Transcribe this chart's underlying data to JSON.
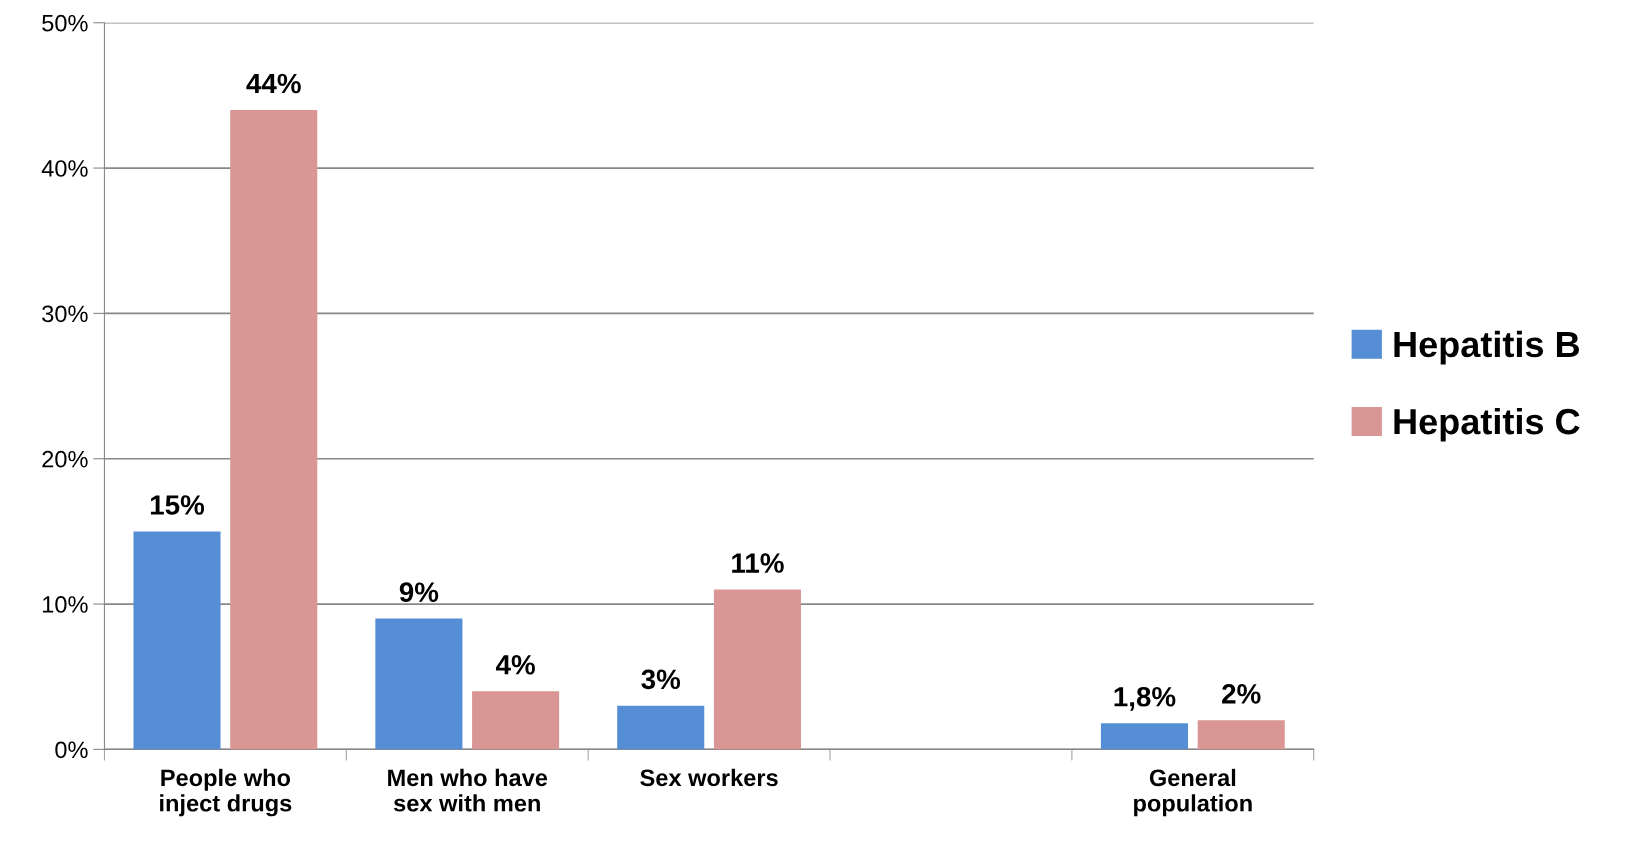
{
  "chart_data": {
    "type": "bar",
    "categories": [
      "People who\ninject drugs",
      "Men who have\nsex with men",
      "Sex workers",
      null,
      "General\npopulation"
    ],
    "series": [
      {
        "name": "Hepatitis B",
        "color": "#558ed5",
        "values": [
          15,
          9,
          3,
          null,
          1.8
        ],
        "value_labels": [
          "15%",
          "9%",
          "3%",
          null,
          "1,8%"
        ]
      },
      {
        "name": "Hepatitis C",
        "color": "#d99694",
        "values": [
          44,
          4,
          11,
          null,
          2
        ],
        "value_labels": [
          "44%",
          "4%",
          "11%",
          null,
          "2%"
        ]
      }
    ],
    "ylim": [
      0,
      50
    ],
    "yticks": [
      {
        "value": 0,
        "label": "0%"
      },
      {
        "value": 10,
        "label": "10%"
      },
      {
        "value": 20,
        "label": "20%"
      },
      {
        "value": 30,
        "label": "30%"
      },
      {
        "value": 40,
        "label": "40%"
      },
      {
        "value": 50,
        "label": "50%"
      }
    ],
    "grid": "y",
    "legend": "right"
  }
}
